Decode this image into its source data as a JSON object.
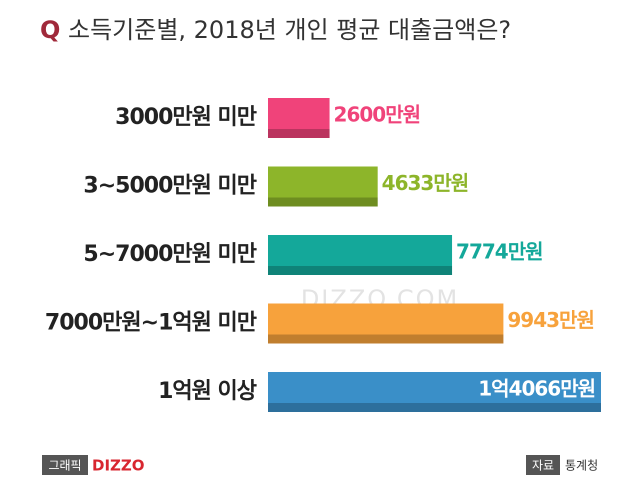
{
  "chart_data": {
    "type": "hbar",
    "title_prefix": "Q",
    "title": "소득기준별, 2018년 개인 평균 대출금액은?",
    "categories": [
      "3000만원 미만",
      "3~5000만원 미만",
      "5~7000만원 미만",
      "7000만원~1억원 미만",
      "1억원 이상"
    ],
    "values": [
      2600,
      4633,
      7774,
      9943,
      14066
    ],
    "value_labels": [
      "2600만원",
      "4633만원",
      "7774만원",
      "9943만원",
      "1억4066만원"
    ],
    "colors": [
      "#f0437a",
      "#8db52a",
      "#14a89a",
      "#f7a23c",
      "#3a8fc8"
    ],
    "watermark": "DIZZO.COM"
  },
  "footer": {
    "graphic_tag": "그래픽",
    "brand": "DIZZO",
    "source_tag": "자료",
    "source": "통계청"
  }
}
